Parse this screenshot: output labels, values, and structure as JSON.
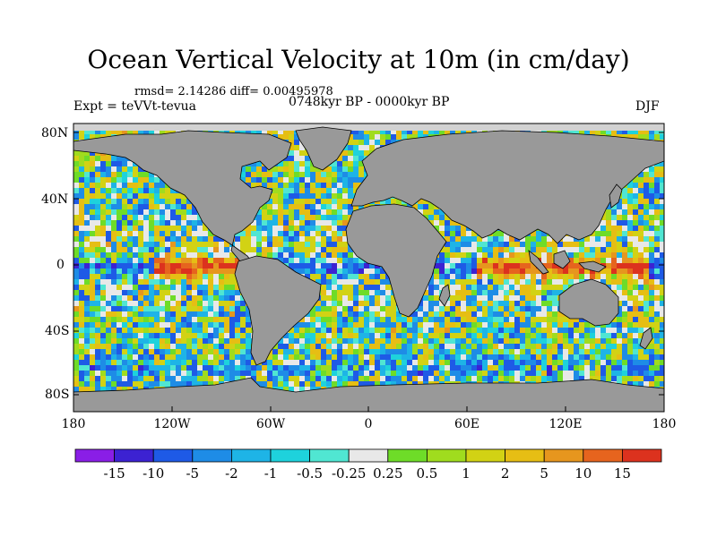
{
  "title": "Ocean Vertical Velocity at 10m (in cm/day)",
  "stats": "rmsd= 2.14286 diff= 0.00495978",
  "experiment": "Expt = teVVt-tevua",
  "period": "0748kyr BP - 0000kyr BP",
  "season": "DJF",
  "lat_labels": [
    "80N",
    "40N",
    "0",
    "40S",
    "80S"
  ],
  "lon_labels": [
    "180",
    "120W",
    "60W",
    "0",
    "60E",
    "120E",
    "180"
  ],
  "colorbar": {
    "labels": [
      "-15",
      "-10",
      "-5",
      "-2",
      "-1",
      "-0.5",
      "-0.25",
      "0.25",
      "0.5",
      "1",
      "2",
      "5",
      "10",
      "15"
    ],
    "colors": [
      "#8a1ee6",
      "#3c22d2",
      "#1e5ae6",
      "#1e8ce6",
      "#1eb4e6",
      "#1ed2dc",
      "#50e6d2",
      "#e8e8e8",
      "#6edc28",
      "#a0dc1e",
      "#d2d214",
      "#e6be14",
      "#e6961e",
      "#e6641e",
      "#dc321e"
    ]
  },
  "style": {
    "land": "#999999",
    "missing": "#d2d2d2"
  }
}
